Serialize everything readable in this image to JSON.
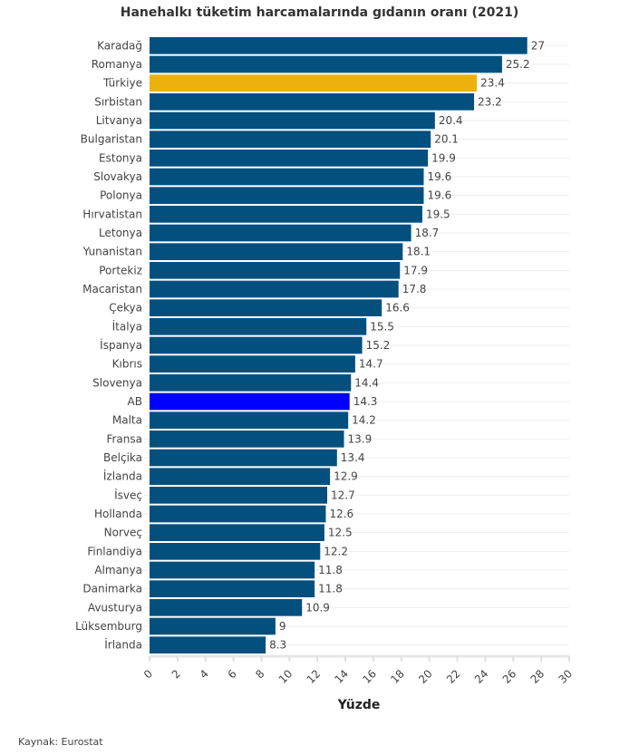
{
  "title": "Hanehalkı tüketim harcamalarında gıdanın oranı (2021)",
  "source": "Kaynak: Eurostat",
  "colors": {
    "default": "#03507f",
    "highlight_turkey": "#edb10e",
    "highlight_eu": "#0000ff",
    "grid": "#eeeeee"
  },
  "chart_data": {
    "type": "bar",
    "orientation": "horizontal",
    "title": "Hanehalkı tüketim harcamalarında gıdanın oranı (2021)",
    "xlabel": "Yüzde",
    "ylabel": "",
    "xlim": [
      0,
      30
    ],
    "xticks": [
      0,
      2,
      4,
      6,
      8,
      10,
      12,
      14,
      16,
      18,
      20,
      22,
      24,
      26,
      28,
      30
    ],
    "grid": true,
    "categories": [
      "Karadağ",
      "Romanya",
      "Türkiye",
      "Sırbistan",
      "Litvanya",
      "Bulgaristan",
      "Estonya",
      "Slovakya",
      "Polonya",
      "Hırvatistan",
      "Letonya",
      "Yunanistan",
      "Portekiz",
      "Macaristan",
      "Çekya",
      "İtalya",
      "İspanya",
      "Kıbrıs",
      "Slovenya",
      "AB",
      "Malta",
      "Fransa",
      "Belçika",
      "İzlanda",
      "İsveç",
      "Hollanda",
      "Norveç",
      "Finlandiya",
      "Almanya",
      "Danimarka",
      "Avusturya",
      "Lüksemburg",
      "İrlanda"
    ],
    "values": [
      27,
      25.2,
      23.4,
      23.2,
      20.4,
      20.1,
      19.9,
      19.6,
      19.6,
      19.5,
      18.7,
      18.1,
      17.9,
      17.8,
      16.6,
      15.5,
      15.2,
      14.7,
      14.4,
      14.3,
      14.2,
      13.9,
      13.4,
      12.9,
      12.7,
      12.6,
      12.5,
      12.2,
      11.8,
      11.8,
      10.9,
      9,
      8.3
    ],
    "highlights": {
      "Türkiye": "highlight_turkey",
      "AB": "highlight_eu"
    },
    "data_labels": true
  }
}
